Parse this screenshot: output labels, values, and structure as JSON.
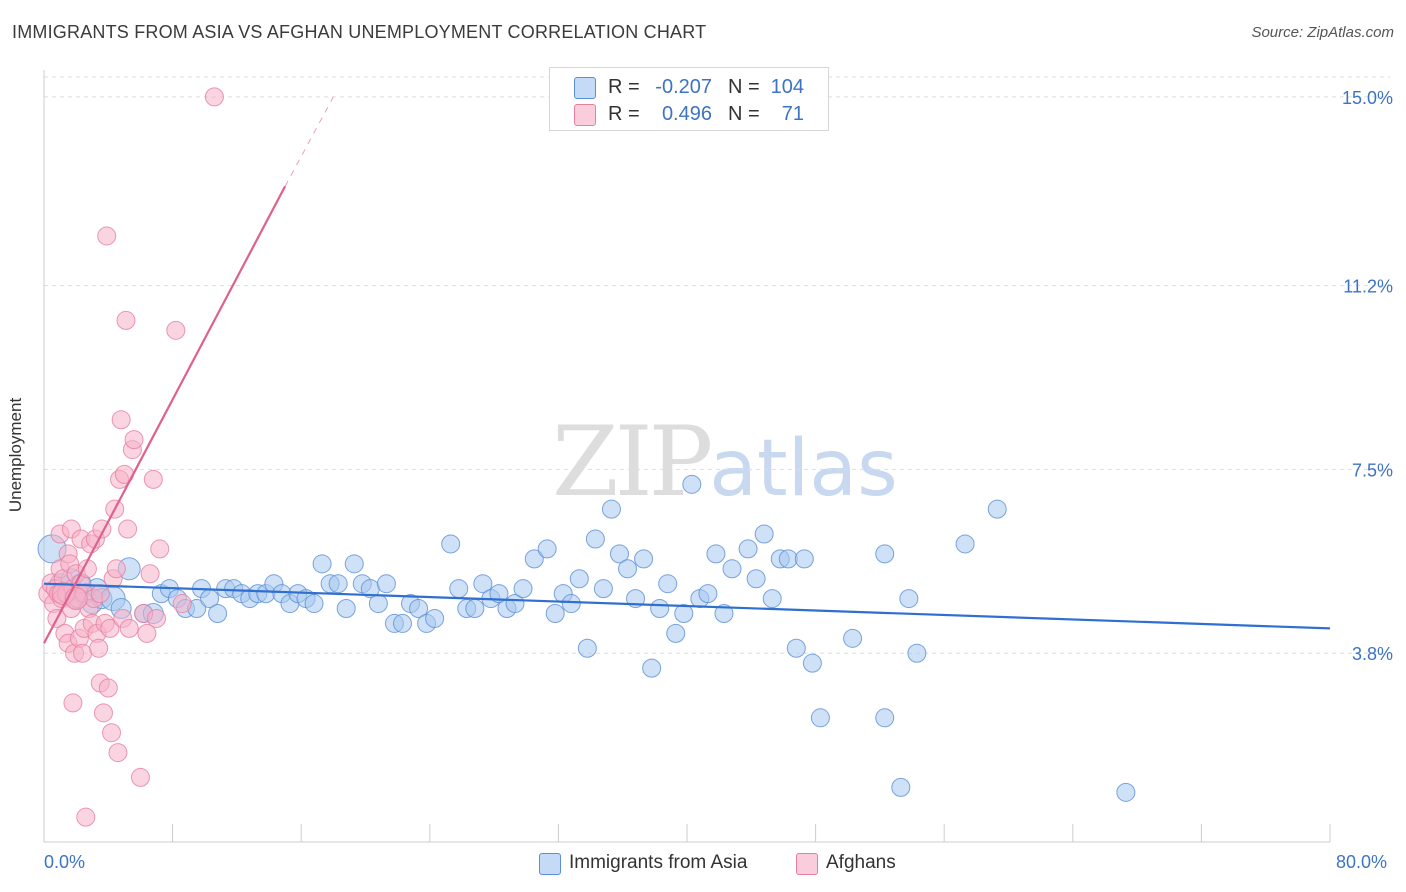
{
  "header": {
    "title": "IMMIGRANTS FROM ASIA VS AFGHAN UNEMPLOYMENT CORRELATION CHART",
    "source": "Source: ZipAtlas.com"
  },
  "watermark": {
    "part1": "ZIP",
    "part2": "atlas"
  },
  "legend": {
    "rows": [
      {
        "r_label": "R =",
        "r_value": "-0.207",
        "n_label": "N =",
        "n_value": "104",
        "color": "#a8c8f0"
      },
      {
        "r_label": "R =",
        "r_value": "0.496",
        "n_label": "N =",
        "n_value": "71",
        "color": "#f5b3c8"
      }
    ]
  },
  "colors": {
    "asia_fill": "#a8c8f0",
    "asia_stroke": "#5b8fd6",
    "asia_line": "#2f6fcf",
    "afghan_fill": "#f5b3c8",
    "afghan_stroke": "#e67ea0",
    "afghan_line": "#e0608c",
    "grid": "#dddddd",
    "tick_label": "#3d73c5"
  },
  "chart_data": {
    "type": "scatter",
    "title": "IMMIGRANTS FROM ASIA VS AFGHAN UNEMPLOYMENT CORRELATION CHART",
    "xlabel": "",
    "ylabel": "Unemployment",
    "xlim": [
      0,
      80
    ],
    "ylim": [
      0,
      15.4
    ],
    "x_tick_labels": [
      "0.0%",
      "80.0%"
    ],
    "y_ticks": [
      3.8,
      7.5,
      11.2,
      15.0
    ],
    "y_tick_labels": [
      "3.8%",
      "7.5%",
      "11.2%",
      "15.0%"
    ],
    "grid": "horizontal dashed",
    "legend_placement": "top-center",
    "series": [
      {
        "name": "Immigrants from Asia",
        "R": -0.207,
        "N": 104,
        "trend": {
          "x": [
            0,
            80
          ],
          "y": [
            5.2,
            4.3
          ]
        },
        "points": [
          [
            0.5,
            5.9,
            14
          ],
          [
            1,
            5.2,
            10
          ],
          [
            1.4,
            5.0,
            10
          ],
          [
            1.7,
            5.3,
            10
          ],
          [
            2,
            4.9,
            10
          ],
          [
            2.3,
            5.2,
            10
          ],
          [
            2.6,
            5.0,
            10
          ],
          [
            3,
            4.8,
            10
          ],
          [
            3.3,
            5.1,
            10
          ],
          [
            3.6,
            4.9,
            10
          ],
          [
            4.3,
            4.9,
            12
          ],
          [
            4.8,
            4.7,
            10
          ],
          [
            5.3,
            5.5,
            11
          ],
          [
            6.2,
            4.6,
            9
          ],
          [
            6.8,
            4.6,
            10
          ],
          [
            7.3,
            5.0,
            9
          ],
          [
            7.8,
            5.1,
            9
          ],
          [
            8.3,
            4.9,
            9
          ],
          [
            8.8,
            4.7,
            9
          ],
          [
            9.5,
            4.7,
            9
          ],
          [
            9.8,
            5.1,
            9
          ],
          [
            10.3,
            4.9,
            9
          ],
          [
            10.8,
            4.6,
            9
          ],
          [
            11.3,
            5.1,
            9
          ],
          [
            11.8,
            5.1,
            9
          ],
          [
            12.3,
            5.0,
            9
          ],
          [
            12.8,
            4.9,
            9
          ],
          [
            13.3,
            5.0,
            9
          ],
          [
            13.8,
            5.0,
            9
          ],
          [
            14.3,
            5.2,
            9
          ],
          [
            14.8,
            5.0,
            9
          ],
          [
            15.3,
            4.8,
            9
          ],
          [
            15.8,
            5.0,
            9
          ],
          [
            16.3,
            4.9,
            9
          ],
          [
            16.8,
            4.8,
            9
          ],
          [
            17.3,
            5.6,
            9
          ],
          [
            17.8,
            5.2,
            9
          ],
          [
            18.3,
            5.2,
            9
          ],
          [
            18.8,
            4.7,
            9
          ],
          [
            19.3,
            5.6,
            9
          ],
          [
            19.8,
            5.2,
            9
          ],
          [
            20.3,
            5.1,
            9
          ],
          [
            20.8,
            4.8,
            9
          ],
          [
            21.3,
            5.2,
            9
          ],
          [
            21.8,
            4.4,
            9
          ],
          [
            22.3,
            4.4,
            9
          ],
          [
            22.8,
            4.8,
            9
          ],
          [
            23.3,
            4.7,
            9
          ],
          [
            23.8,
            4.4,
            9
          ],
          [
            24.3,
            4.5,
            9
          ],
          [
            25.3,
            6.0,
            9
          ],
          [
            25.8,
            5.1,
            9
          ],
          [
            26.3,
            4.7,
            9
          ],
          [
            26.8,
            4.7,
            9
          ],
          [
            27.3,
            5.2,
            9
          ],
          [
            27.8,
            4.9,
            9
          ],
          [
            28.3,
            5.0,
            9
          ],
          [
            28.8,
            4.7,
            9
          ],
          [
            29.3,
            4.8,
            9
          ],
          [
            29.8,
            5.1,
            9
          ],
          [
            30.5,
            5.7,
            9
          ],
          [
            31.3,
            5.9,
            9
          ],
          [
            31.8,
            4.6,
            9
          ],
          [
            32.3,
            5.0,
            9
          ],
          [
            32.8,
            4.8,
            9
          ],
          [
            33.3,
            5.3,
            9
          ],
          [
            33.8,
            3.9,
            9
          ],
          [
            34.3,
            6.1,
            9
          ],
          [
            34.8,
            5.1,
            9
          ],
          [
            35.3,
            6.7,
            9
          ],
          [
            35.8,
            5.8,
            9
          ],
          [
            36.3,
            5.5,
            9
          ],
          [
            36.8,
            4.9,
            9
          ],
          [
            37.3,
            5.7,
            9
          ],
          [
            37.8,
            3.5,
            9
          ],
          [
            38.3,
            4.7,
            9
          ],
          [
            38.8,
            5.2,
            9
          ],
          [
            39.3,
            4.2,
            9
          ],
          [
            39.8,
            4.6,
            9
          ],
          [
            40.3,
            7.2,
            9
          ],
          [
            40.8,
            4.9,
            9
          ],
          [
            41.3,
            5.0,
            9
          ],
          [
            41.8,
            5.8,
            9
          ],
          [
            42.3,
            4.6,
            9
          ],
          [
            42.8,
            5.5,
            9
          ],
          [
            43.8,
            5.9,
            9
          ],
          [
            44.3,
            5.3,
            9
          ],
          [
            44.8,
            6.2,
            9
          ],
          [
            45.3,
            4.9,
            9
          ],
          [
            45.8,
            5.7,
            9
          ],
          [
            46.3,
            5.7,
            9
          ],
          [
            46.8,
            3.9,
            9
          ],
          [
            47.3,
            5.7,
            9
          ],
          [
            47.8,
            3.6,
            9
          ],
          [
            48.3,
            2.5,
            9
          ],
          [
            50.3,
            4.1,
            9
          ],
          [
            52.3,
            5.8,
            9
          ],
          [
            52.3,
            2.5,
            9
          ],
          [
            53.3,
            1.1,
            9
          ],
          [
            53.8,
            4.9,
            9
          ],
          [
            54.3,
            3.8,
            9
          ],
          [
            57.3,
            6.0,
            9
          ],
          [
            59.3,
            6.7,
            9
          ],
          [
            67.3,
            1.0,
            9
          ]
        ]
      },
      {
        "name": "Afghans",
        "R": 0.496,
        "N": 71,
        "trend": {
          "x": [
            0,
            15
          ],
          "y": [
            4.0,
            13.2
          ]
        },
        "trend_dashed": {
          "x": [
            15,
            18
          ],
          "y": [
            13.2,
            15.0
          ]
        },
        "points": [
          [
            0.3,
            5.0,
            10
          ],
          [
            0.5,
            5.2,
            10
          ],
          [
            0.6,
            4.8,
            9
          ],
          [
            0.7,
            5.1,
            9
          ],
          [
            0.8,
            4.5,
            9
          ],
          [
            0.9,
            5.0,
            9
          ],
          [
            1.0,
            6.2,
            9
          ],
          [
            1.0,
            5.5,
            9
          ],
          [
            1.1,
            4.9,
            9
          ],
          [
            1.2,
            5.3,
            9
          ],
          [
            1.3,
            4.2,
            9
          ],
          [
            1.4,
            5.0,
            9
          ],
          [
            1.5,
            4.0,
            9
          ],
          [
            1.5,
            5.8,
            9
          ],
          [
            1.6,
            5.6,
            9
          ],
          [
            1.7,
            6.3,
            9
          ],
          [
            1.7,
            4.7,
            9
          ],
          [
            1.8,
            2.8,
            9
          ],
          [
            1.8,
            5.1,
            9
          ],
          [
            1.9,
            3.8,
            9
          ],
          [
            2.0,
            5.4,
            9
          ],
          [
            2.1,
            4.9,
            9
          ],
          [
            2.2,
            4.1,
            9
          ],
          [
            2.3,
            5.2,
            9
          ],
          [
            2.3,
            6.1,
            9
          ],
          [
            2.4,
            3.8,
            9
          ],
          [
            2.5,
            5.0,
            9
          ],
          [
            2.5,
            4.3,
            9
          ],
          [
            2.6,
            0.5,
            9
          ],
          [
            2.7,
            5.5,
            9
          ],
          [
            2.8,
            4.7,
            9
          ],
          [
            2.9,
            6.0,
            9
          ],
          [
            3.0,
            4.4,
            9
          ],
          [
            3.1,
            4.9,
            9
          ],
          [
            3.2,
            6.1,
            9
          ],
          [
            3.3,
            4.2,
            9
          ],
          [
            3.4,
            3.9,
            9
          ],
          [
            3.5,
            3.2,
            9
          ],
          [
            3.5,
            5.0,
            9
          ],
          [
            3.6,
            6.3,
            9
          ],
          [
            3.7,
            2.6,
            9
          ],
          [
            3.8,
            4.4,
            9
          ],
          [
            3.9,
            12.2,
            9
          ],
          [
            4.0,
            3.1,
            9
          ],
          [
            4.1,
            4.3,
            9
          ],
          [
            4.2,
            2.2,
            9
          ],
          [
            4.3,
            5.3,
            9
          ],
          [
            4.4,
            6.7,
            9
          ],
          [
            4.5,
            5.5,
            9
          ],
          [
            4.6,
            1.8,
            9
          ],
          [
            4.7,
            7.3,
            9
          ],
          [
            4.8,
            8.5,
            9
          ],
          [
            4.9,
            4.5,
            9
          ],
          [
            5.0,
            7.4,
            9
          ],
          [
            5.1,
            10.5,
            9
          ],
          [
            5.2,
            6.3,
            9
          ],
          [
            5.3,
            4.3,
            9
          ],
          [
            5.5,
            7.9,
            9
          ],
          [
            5.6,
            8.1,
            9
          ],
          [
            6.0,
            1.3,
            9
          ],
          [
            6.2,
            4.6,
            9
          ],
          [
            6.4,
            4.2,
            9
          ],
          [
            6.6,
            5.4,
            9
          ],
          [
            6.8,
            7.3,
            9
          ],
          [
            7.0,
            4.5,
            9
          ],
          [
            7.2,
            5.9,
            9
          ],
          [
            8.2,
            10.3,
            9
          ],
          [
            8.6,
            4.8,
            9
          ],
          [
            10.6,
            15.0,
            9
          ],
          [
            1.2,
            5.0,
            11
          ],
          [
            2.0,
            4.9,
            11
          ]
        ]
      }
    ]
  },
  "bottom_legend": [
    {
      "label": "Immigrants from Asia",
      "color": "#a8c8f0"
    },
    {
      "label": "Afghans",
      "color": "#f5b3c8"
    }
  ]
}
